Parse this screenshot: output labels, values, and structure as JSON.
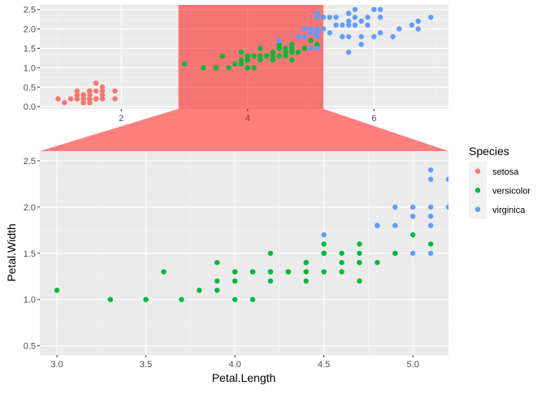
{
  "chart_data": {
    "type": "scatter",
    "xlabel": "Petal.Length",
    "ylabel": "Petal.Width",
    "legend": {
      "title": "Species",
      "placement": "right"
    },
    "grid": true,
    "overview_panel": {
      "xlim": [
        0.71,
        7.18
      ],
      "ylim": [
        -0.06,
        2.62
      ],
      "x_ticks": [
        "2",
        "4",
        "6"
      ],
      "y_ticks": [
        "0.0",
        "0.5",
        "1.0",
        "1.5",
        "2.0",
        "2.5"
      ]
    },
    "zoom_panel": {
      "xlim": [
        2.904,
        5.2
      ],
      "ylim": [
        0.4,
        2.605
      ],
      "x_ticks": [
        "3.0",
        "3.5",
        "4.0",
        "4.5",
        "5.0"
      ],
      "y_ticks": [
        "0.5",
        "1.0",
        "1.5",
        "2.0",
        "2.5"
      ]
    },
    "zoom_highlight_color": "#FF0000",
    "series": [
      {
        "name": "setosa",
        "color": "#F8766D",
        "points": [
          [
            1.4,
            0.2
          ],
          [
            1.4,
            0.2
          ],
          [
            1.3,
            0.2
          ],
          [
            1.5,
            0.2
          ],
          [
            1.4,
            0.2
          ],
          [
            1.7,
            0.4
          ],
          [
            1.4,
            0.3
          ],
          [
            1.5,
            0.2
          ],
          [
            1.4,
            0.2
          ],
          [
            1.5,
            0.1
          ],
          [
            1.5,
            0.2
          ],
          [
            1.6,
            0.2
          ],
          [
            1.4,
            0.1
          ],
          [
            1.1,
            0.1
          ],
          [
            1.2,
            0.2
          ],
          [
            1.5,
            0.4
          ],
          [
            1.3,
            0.4
          ],
          [
            1.4,
            0.3
          ],
          [
            1.7,
            0.3
          ],
          [
            1.5,
            0.3
          ],
          [
            1.7,
            0.2
          ],
          [
            1.5,
            0.4
          ],
          [
            1.0,
            0.2
          ],
          [
            1.7,
            0.5
          ],
          [
            1.9,
            0.2
          ],
          [
            1.6,
            0.2
          ],
          [
            1.6,
            0.4
          ],
          [
            1.5,
            0.2
          ],
          [
            1.4,
            0.2
          ],
          [
            1.6,
            0.2
          ],
          [
            1.6,
            0.2
          ],
          [
            1.5,
            0.4
          ],
          [
            1.5,
            0.1
          ],
          [
            1.4,
            0.2
          ],
          [
            1.5,
            0.2
          ],
          [
            1.2,
            0.2
          ],
          [
            1.3,
            0.2
          ],
          [
            1.4,
            0.1
          ],
          [
            1.3,
            0.2
          ],
          [
            1.5,
            0.2
          ],
          [
            1.3,
            0.3
          ],
          [
            1.3,
            0.3
          ],
          [
            1.3,
            0.2
          ],
          [
            1.6,
            0.6
          ],
          [
            1.9,
            0.4
          ],
          [
            1.4,
            0.3
          ],
          [
            1.6,
            0.2
          ],
          [
            1.4,
            0.2
          ],
          [
            1.5,
            0.2
          ],
          [
            1.4,
            0.2
          ]
        ]
      },
      {
        "name": "versicolor",
        "color": "#00BA38",
        "points": [
          [
            4.7,
            1.4
          ],
          [
            4.5,
            1.5
          ],
          [
            4.9,
            1.5
          ],
          [
            4.0,
            1.3
          ],
          [
            4.6,
            1.5
          ],
          [
            4.5,
            1.3
          ],
          [
            4.7,
            1.6
          ],
          [
            3.3,
            1.0
          ],
          [
            4.6,
            1.3
          ],
          [
            3.9,
            1.4
          ],
          [
            3.5,
            1.0
          ],
          [
            4.2,
            1.5
          ],
          [
            4.0,
            1.0
          ],
          [
            4.7,
            1.4
          ],
          [
            3.6,
            1.3
          ],
          [
            4.4,
            1.4
          ],
          [
            4.5,
            1.5
          ],
          [
            4.1,
            1.0
          ],
          [
            4.5,
            1.5
          ],
          [
            3.9,
            1.1
          ],
          [
            4.8,
            1.8
          ],
          [
            4.0,
            1.3
          ],
          [
            4.9,
            1.5
          ],
          [
            4.7,
            1.2
          ],
          [
            4.3,
            1.3
          ],
          [
            4.4,
            1.4
          ],
          [
            4.8,
            1.4
          ],
          [
            5.0,
            1.7
          ],
          [
            4.5,
            1.5
          ],
          [
            3.5,
            1.0
          ],
          [
            3.8,
            1.1
          ],
          [
            3.7,
            1.0
          ],
          [
            3.9,
            1.2
          ],
          [
            5.1,
            1.6
          ],
          [
            4.5,
            1.5
          ],
          [
            4.5,
            1.6
          ],
          [
            4.7,
            1.5
          ],
          [
            4.4,
            1.3
          ],
          [
            4.1,
            1.3
          ],
          [
            4.0,
            1.3
          ],
          [
            4.4,
            1.2
          ],
          [
            4.6,
            1.4
          ],
          [
            4.0,
            1.2
          ],
          [
            3.3,
            1.0
          ],
          [
            4.2,
            1.3
          ],
          [
            4.2,
            1.2
          ],
          [
            4.2,
            1.3
          ],
          [
            4.3,
            1.3
          ],
          [
            3.0,
            1.1
          ],
          [
            4.1,
            1.3
          ]
        ]
      },
      {
        "name": "virginica",
        "color": "#619CFF",
        "points": [
          [
            6.0,
            2.5
          ],
          [
            5.1,
            1.9
          ],
          [
            5.9,
            2.1
          ],
          [
            5.6,
            1.8
          ],
          [
            5.8,
            2.2
          ],
          [
            6.6,
            2.1
          ],
          [
            4.5,
            1.7
          ],
          [
            6.3,
            1.8
          ],
          [
            5.8,
            1.8
          ],
          [
            6.1,
            2.5
          ],
          [
            5.1,
            2.0
          ],
          [
            5.3,
            1.9
          ],
          [
            5.5,
            2.1
          ],
          [
            5.0,
            2.0
          ],
          [
            5.1,
            2.4
          ],
          [
            5.3,
            2.3
          ],
          [
            5.5,
            1.8
          ],
          [
            6.7,
            2.2
          ],
          [
            6.9,
            2.3
          ],
          [
            5.0,
            1.5
          ],
          [
            5.7,
            2.3
          ],
          [
            4.9,
            2.0
          ],
          [
            6.7,
            2.0
          ],
          [
            4.9,
            1.8
          ],
          [
            5.7,
            2.1
          ],
          [
            6.0,
            1.8
          ],
          [
            4.8,
            1.8
          ],
          [
            4.9,
            1.8
          ],
          [
            5.6,
            2.1
          ],
          [
            5.8,
            1.6
          ],
          [
            6.1,
            1.9
          ],
          [
            6.4,
            2.0
          ],
          [
            5.6,
            2.2
          ],
          [
            5.1,
            1.5
          ],
          [
            5.6,
            1.4
          ],
          [
            6.1,
            2.3
          ],
          [
            5.6,
            2.4
          ],
          [
            5.5,
            1.8
          ],
          [
            4.8,
            1.8
          ],
          [
            5.4,
            2.1
          ],
          [
            5.6,
            2.4
          ],
          [
            5.1,
            2.3
          ],
          [
            5.1,
            1.9
          ],
          [
            5.9,
            2.3
          ],
          [
            5.7,
            2.5
          ],
          [
            5.2,
            2.3
          ],
          [
            5.0,
            1.9
          ],
          [
            5.2,
            2.0
          ],
          [
            5.4,
            2.3
          ],
          [
            5.1,
            1.8
          ]
        ]
      }
    ]
  }
}
